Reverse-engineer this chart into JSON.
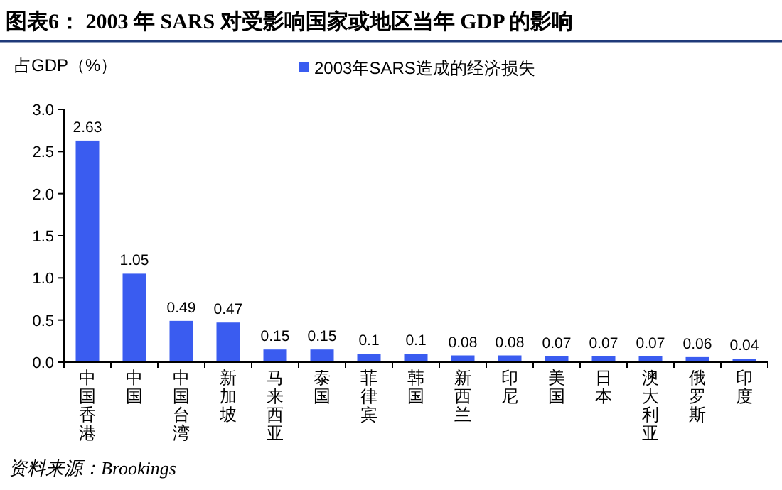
{
  "chart_data": {
    "type": "bar",
    "title": "图表6：   2003 年 SARS 对受影响国家或地区当年 GDP 的影响",
    "ylabel": "占GDP（%）",
    "categories": [
      "中国香港",
      "中国",
      "中国台湾",
      "新加坡",
      "马来西亚",
      "泰国",
      "菲律宾",
      "韩国",
      "新西兰",
      "印尼",
      "美国",
      "日本",
      "澳大利亚",
      "俄罗斯",
      "印度"
    ],
    "series": [
      {
        "name": "2003年SARS造成的经济损失",
        "color": "#3a5cf0",
        "values": [
          2.63,
          1.05,
          0.49,
          0.47,
          0.15,
          0.15,
          0.1,
          0.1,
          0.08,
          0.08,
          0.07,
          0.07,
          0.07,
          0.06,
          0.04
        ]
      }
    ],
    "ylim": [
      0,
      3
    ],
    "yticks": [
      {
        "value": 0,
        "label": "0.0"
      },
      {
        "value": 0.5,
        "label": "0.5"
      },
      {
        "value": 1,
        "label": "1.0"
      },
      {
        "value": 1.5,
        "label": "1.5"
      },
      {
        "value": 2,
        "label": "2.0"
      },
      {
        "value": 2.5,
        "label": "2.5"
      },
      {
        "value": 3,
        "label": "3.0"
      }
    ],
    "data_labels": true,
    "legend": "top",
    "grid": false,
    "annotations": [
      "资料来源：Brookings"
    ]
  }
}
